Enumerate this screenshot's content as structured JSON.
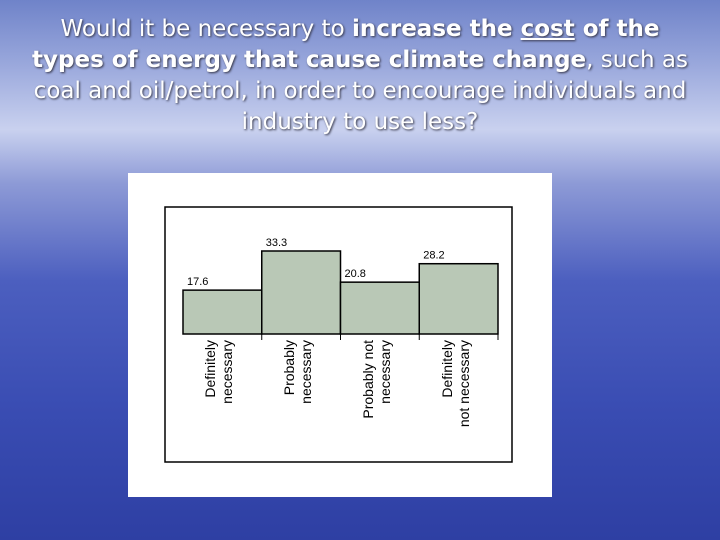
{
  "chart_data": {
    "type": "bar",
    "title_segments": [
      "Would it be necessary to ",
      "increase the ",
      "cost",
      " of the types of energy that cause climate change",
      ", such as coal and oil/petrol, in order to encourage individuals and industry to use less?"
    ],
    "categories": [
      "Definitely\nnecessary",
      "Probably\nnecessary",
      "Probably not\nnecessary",
      "Definitely\nnot necessary"
    ],
    "values": [
      17.6,
      33.3,
      20.8,
      28.2
    ],
    "color": "#b9c8b6"
  }
}
